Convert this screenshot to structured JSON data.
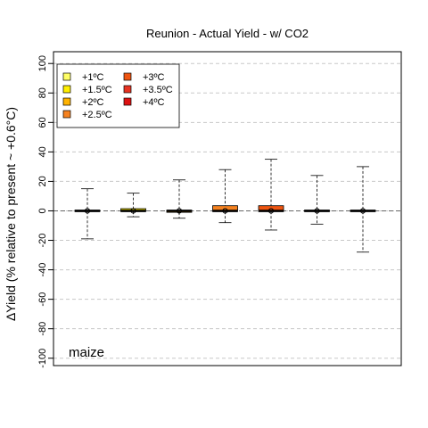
{
  "chart_data": {
    "type": "boxplot",
    "title": "Reunion - Actual Yield - w/ CO2",
    "ylabel": "ΔYield (% relative to present ~ +0.6°C)",
    "xlabel": "",
    "ylim": [
      -105,
      108
    ],
    "yticks": [
      -100,
      -80,
      -60,
      -40,
      -20,
      0,
      20,
      40,
      60,
      80,
      100
    ],
    "grid": "horizontal dashed at y ticks",
    "legend_placement": "top-left",
    "annotation": "maize",
    "series": [
      {
        "name": "+1ºC",
        "color": "#FFFF66",
        "min": -19,
        "q1": -0.5,
        "median": 0,
        "q3": 0.5,
        "max": 15
      },
      {
        "name": "+1.5ºC",
        "color": "#FFEE00",
        "min": -4,
        "q1": -0.5,
        "median": 0,
        "q3": 1.5,
        "max": 12
      },
      {
        "name": "+2ºC",
        "color": "#FFB300",
        "min": -5,
        "q1": -1,
        "median": 0,
        "q3": 0.5,
        "max": 21
      },
      {
        "name": "+2.5ºC",
        "color": "#F58220",
        "min": -8,
        "q1": -0.5,
        "median": 0,
        "q3": 3.5,
        "max": 28
      },
      {
        "name": "+3ºC",
        "color": "#EE5511",
        "min": -13,
        "q1": -0.5,
        "median": 0,
        "q3": 3.5,
        "max": 35
      },
      {
        "name": "+3.5ºC",
        "color": "#E63322",
        "min": -9,
        "q1": -0.5,
        "median": 0,
        "q3": 0.5,
        "max": 24
      },
      {
        "name": "+4ºC",
        "color": "#DD1111",
        "min": -28,
        "q1": -0.5,
        "median": 0,
        "q3": 0.5,
        "max": 30
      }
    ]
  }
}
